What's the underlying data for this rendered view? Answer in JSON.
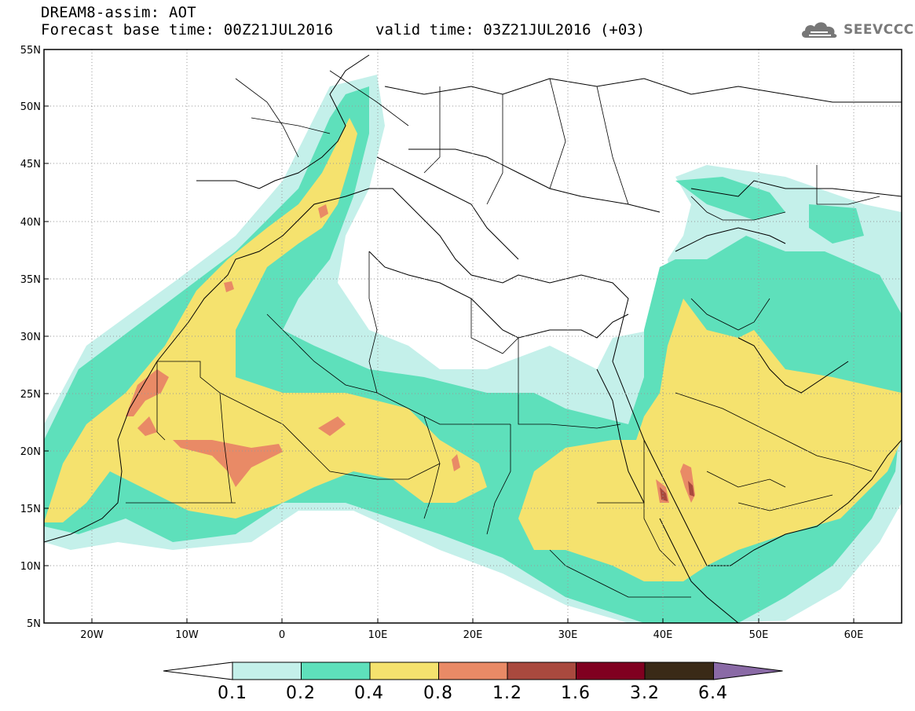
{
  "header": {
    "line1": "DREAM8-assim: AOT",
    "line2": "Forecast base time: 00Z21JUL2016",
    "valid": "valid time: 03Z21JUL2016 (+03)"
  },
  "logo": {
    "icon": "cloud-icon",
    "text": "SEEVCCC"
  },
  "map": {
    "lat_labels": [
      "55N",
      "50N",
      "45N",
      "40N",
      "35N",
      "30N",
      "25N",
      "20N",
      "15N",
      "10N",
      "5N"
    ],
    "lon_labels": [
      "20W",
      "10W",
      "0",
      "10E",
      "20E",
      "30E",
      "40E",
      "50E",
      "60E"
    ]
  },
  "colorbar": {
    "labels": [
      "0.1",
      "0.2",
      "0.4",
      "0.8",
      "1.2",
      "1.6",
      "3.2",
      "6.4"
    ],
    "colors": [
      "#ffffff",
      "#c4f0ea",
      "#5ee0bb",
      "#f5e26e",
      "#e98a66",
      "#a9493e",
      "#800020",
      "#3a2a17",
      "#8a6aa6"
    ]
  }
}
